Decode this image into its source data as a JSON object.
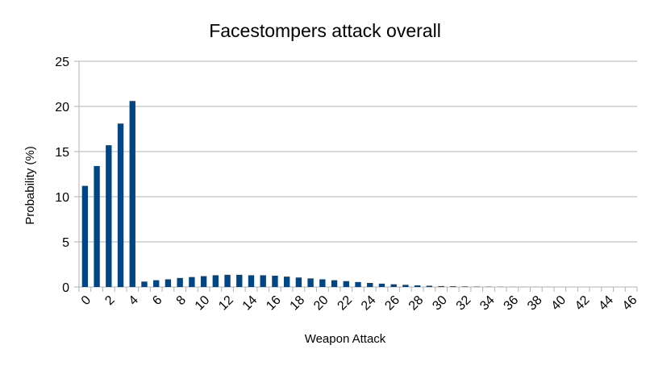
{
  "chart_data": {
    "type": "bar",
    "title": "Facestompers attack overall",
    "xlabel": "Weapon Attack",
    "ylabel": "Probability (%)",
    "ylim": [
      0,
      25
    ],
    "yticks": [
      "0",
      "5",
      "10",
      "15",
      "20",
      "25"
    ],
    "grid": true,
    "legend": "none",
    "bar_color": "#004586",
    "gridline_color": "#b3b3b3",
    "categories": [
      "0",
      "1",
      "2",
      "3",
      "4",
      "5",
      "6",
      "7",
      "8",
      "9",
      "10",
      "11",
      "12",
      "13",
      "14",
      "15",
      "16",
      "17",
      "18",
      "19",
      "20",
      "21",
      "22",
      "23",
      "24",
      "25",
      "26",
      "27",
      "28",
      "29",
      "30",
      "31",
      "32",
      "33",
      "34",
      "35",
      "36",
      "37",
      "38",
      "39",
      "40",
      "41",
      "42",
      "43",
      "44",
      "45",
      "46"
    ],
    "tick_labels": [
      "0",
      "2",
      "4",
      "6",
      "8",
      "10",
      "12",
      "14",
      "16",
      "18",
      "20",
      "22",
      "24",
      "26",
      "28",
      "30",
      "32",
      "34",
      "36",
      "38",
      "40",
      "42",
      "44",
      "46"
    ],
    "values": [
      11.2,
      13.4,
      15.7,
      18.1,
      20.6,
      0.6,
      0.75,
      0.85,
      1.0,
      1.1,
      1.2,
      1.3,
      1.35,
      1.35,
      1.3,
      1.3,
      1.25,
      1.15,
      1.05,
      0.95,
      0.85,
      0.75,
      0.65,
      0.55,
      0.45,
      0.37,
      0.3,
      0.24,
      0.18,
      0.14,
      0.1,
      0.08,
      0.06,
      0.04,
      0.03,
      0.02,
      0.015,
      0.01,
      0.008,
      0.005,
      0.003,
      0.002,
      0.001,
      0.001,
      0.0005,
      0.0003,
      0.0002
    ]
  }
}
